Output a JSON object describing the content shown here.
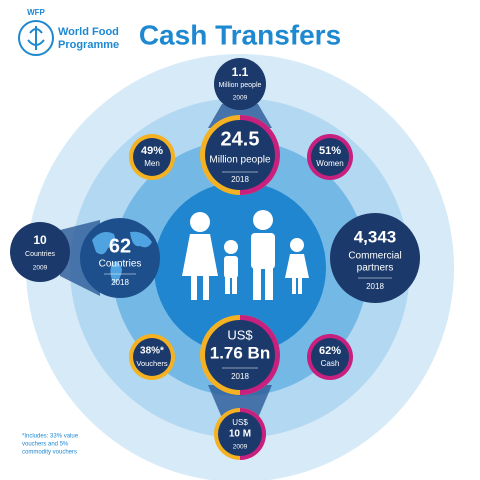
{
  "logo": {
    "acronym": "WFP",
    "name_line1": "World Food",
    "name_line2": "Programme"
  },
  "title": "Cash Transfers",
  "people_2009": {
    "value": "1.1",
    "label": "Million people",
    "year": "2009"
  },
  "people_2018": {
    "value": "24.5",
    "label": "Million people",
    "year": "2018"
  },
  "men": {
    "value": "49%",
    "label": "Men"
  },
  "women": {
    "value": "51%",
    "label": "Women"
  },
  "countries_2009": {
    "value": "10",
    "label": "Countries",
    "year": "2009"
  },
  "countries_2018": {
    "value": "62",
    "label": "Countries",
    "year": "2018"
  },
  "partners": {
    "value": "4,343",
    "label_line1": "Commercial",
    "label_line2": "partners",
    "year": "2018"
  },
  "funds_2018": {
    "currency": "US$",
    "value": "1.76 Bn",
    "year": "2018"
  },
  "vouchers": {
    "value": "38%*",
    "label": "Vouchers"
  },
  "cash": {
    "value": "62%",
    "label": "Cash"
  },
  "funds_2009": {
    "currency": "US$",
    "value": "10 M",
    "year": "2009"
  },
  "footnote": {
    "line1": "*Includes: 33% value",
    "line2": "vouchers and 5%",
    "line3": "commodity vouchers"
  }
}
